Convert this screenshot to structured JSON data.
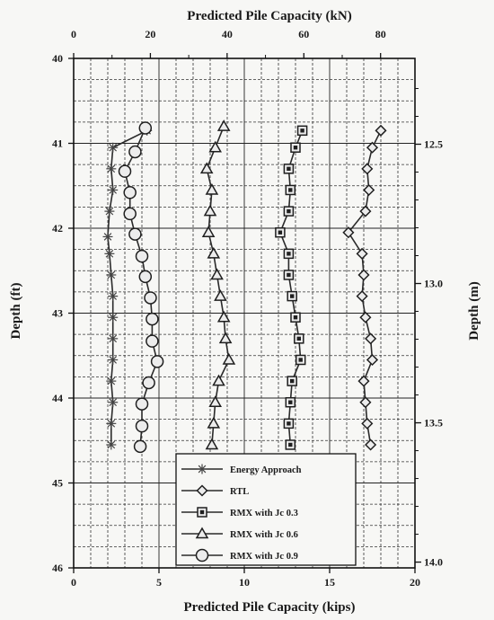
{
  "chart_data": {
    "type": "line",
    "title": "Predicted Pile Capacity (kN)",
    "xlabel": "Predicted Pile Capacity (kips)",
    "ylabel": "Depth (ft)",
    "ylabel_right": "Depth (m)",
    "xlim": [
      0,
      20
    ],
    "ylim": [
      40,
      46
    ],
    "x_ticks": [
      "0",
      "5",
      "10",
      "15",
      "20"
    ],
    "y_ticks": [
      "40",
      "41",
      "42",
      "43",
      "44",
      "45",
      "46"
    ],
    "top_ticks": [
      "0",
      "20",
      "40",
      "60",
      "80"
    ],
    "right_ticks": [
      "12.5",
      "13.0",
      "13.5",
      "14.0"
    ],
    "grid": true,
    "legend_position": "bottom-center",
    "series": [
      {
        "name": "Energy Approach",
        "marker": "star",
        "points": [
          [
            4.3,
            40.85
          ],
          [
            2.3,
            41.05
          ],
          [
            2.2,
            41.3
          ],
          [
            2.3,
            41.55
          ],
          [
            2.1,
            41.8
          ],
          [
            2.0,
            42.1
          ],
          [
            2.1,
            42.3
          ],
          [
            2.2,
            42.55
          ],
          [
            2.3,
            42.8
          ],
          [
            2.3,
            43.05
          ],
          [
            2.3,
            43.3
          ],
          [
            2.3,
            43.55
          ],
          [
            2.2,
            43.8
          ],
          [
            2.3,
            44.05
          ],
          [
            2.2,
            44.3
          ],
          [
            2.2,
            44.55
          ]
        ]
      },
      {
        "name": "RTL",
        "marker": "diamond",
        "points": [
          [
            18.0,
            40.85
          ],
          [
            17.5,
            41.05
          ],
          [
            17.2,
            41.3
          ],
          [
            17.3,
            41.55
          ],
          [
            17.1,
            41.8
          ],
          [
            16.1,
            42.05
          ],
          [
            16.9,
            42.3
          ],
          [
            17.0,
            42.55
          ],
          [
            16.9,
            42.8
          ],
          [
            17.1,
            43.05
          ],
          [
            17.4,
            43.3
          ],
          [
            17.5,
            43.55
          ],
          [
            17.0,
            43.8
          ],
          [
            17.1,
            44.05
          ],
          [
            17.2,
            44.3
          ],
          [
            17.4,
            44.55
          ]
        ]
      },
      {
        "name": "RMX with Jc 0.3",
        "marker": "square",
        "points": [
          [
            13.4,
            40.85
          ],
          [
            13.0,
            41.05
          ],
          [
            12.6,
            41.3
          ],
          [
            12.7,
            41.55
          ],
          [
            12.6,
            41.8
          ],
          [
            12.1,
            42.05
          ],
          [
            12.6,
            42.3
          ],
          [
            12.6,
            42.55
          ],
          [
            12.8,
            42.8
          ],
          [
            13.0,
            43.05
          ],
          [
            13.2,
            43.3
          ],
          [
            13.3,
            43.55
          ],
          [
            12.8,
            43.8
          ],
          [
            12.7,
            44.05
          ],
          [
            12.6,
            44.3
          ],
          [
            12.7,
            44.55
          ]
        ]
      },
      {
        "name": "RMX with Jc 0.6",
        "marker": "triangle",
        "points": [
          [
            8.8,
            40.8
          ],
          [
            8.3,
            41.05
          ],
          [
            7.8,
            41.3
          ],
          [
            8.1,
            41.55
          ],
          [
            8.0,
            41.8
          ],
          [
            7.9,
            42.05
          ],
          [
            8.2,
            42.3
          ],
          [
            8.4,
            42.55
          ],
          [
            8.6,
            42.8
          ],
          [
            8.8,
            43.05
          ],
          [
            8.9,
            43.3
          ],
          [
            9.1,
            43.55
          ],
          [
            8.5,
            43.8
          ],
          [
            8.3,
            44.05
          ],
          [
            8.2,
            44.3
          ],
          [
            8.1,
            44.55
          ]
        ]
      },
      {
        "name": "RMX with Jc 0.9",
        "marker": "circle",
        "points": [
          [
            4.2,
            40.82
          ],
          [
            3.6,
            41.1
          ],
          [
            3.0,
            41.33
          ],
          [
            3.3,
            41.58
          ],
          [
            3.3,
            41.83
          ],
          [
            3.6,
            42.07
          ],
          [
            4.0,
            42.33
          ],
          [
            4.2,
            42.57
          ],
          [
            4.5,
            42.82
          ],
          [
            4.6,
            43.07
          ],
          [
            4.6,
            43.33
          ],
          [
            4.9,
            43.57
          ],
          [
            4.4,
            43.82
          ],
          [
            4.0,
            44.07
          ],
          [
            4.0,
            44.33
          ],
          [
            3.9,
            44.57
          ]
        ]
      }
    ]
  }
}
